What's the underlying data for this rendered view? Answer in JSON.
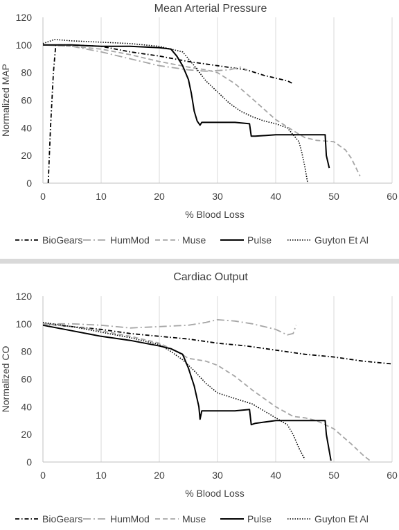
{
  "chart_data": [
    {
      "type": "line",
      "title": "Mean Arterial Pressure",
      "xlabel": "% Blood Loss",
      "ylabel": "Normalized MAP",
      "xlim": [
        0,
        60
      ],
      "ylim": [
        0,
        120
      ],
      "xticks": [
        "0",
        "10",
        "20",
        "30",
        "40",
        "50",
        "60"
      ],
      "yticks": [
        "0",
        "20",
        "40",
        "60",
        "80",
        "100",
        "120"
      ],
      "grid": "vertical",
      "legend": "bottom",
      "series": [
        {
          "name": "BioGears",
          "style": "dashdot",
          "color": "#000000",
          "x": [
            0.9,
            1.3,
            1.8,
            2.2,
            5,
            10,
            15,
            20,
            25,
            30,
            35,
            38,
            40,
            42,
            43
          ],
          "y": [
            0,
            40,
            80,
            100,
            100,
            99,
            95,
            92,
            88,
            85,
            82,
            78,
            76,
            74,
            72
          ]
        },
        {
          "name": "HumMod",
          "style": "longdashdot",
          "color": "#a6a6a6",
          "x": [
            0,
            5,
            10,
            15,
            20,
            25,
            28,
            32,
            34,
            35
          ],
          "y": [
            100,
            99,
            95,
            90,
            85,
            82,
            81,
            82,
            84,
            82
          ]
        },
        {
          "name": "Muse",
          "style": "dashed",
          "color": "#a6a6a6",
          "x": [
            0,
            5,
            10,
            15,
            20,
            25,
            28,
            30,
            33,
            36,
            40,
            43,
            45,
            47,
            50,
            52,
            53,
            54.5
          ],
          "y": [
            100,
            99,
            97,
            93,
            88,
            84,
            82,
            80,
            72,
            61,
            46,
            38,
            33,
            31,
            30,
            24,
            18,
            5
          ]
        },
        {
          "name": "Pulse",
          "style": "solid",
          "color": "#000000",
          "x": [
            0,
            5,
            10,
            15,
            20,
            22,
            23,
            24,
            25,
            25.5,
            26,
            26.5,
            27,
            27.3,
            30,
            33,
            35.5,
            35.8,
            36.5,
            40,
            45,
            48.5,
            48.7,
            49.2
          ],
          "y": [
            100,
            100,
            99,
            99,
            98,
            97,
            92,
            85,
            75,
            65,
            52,
            45,
            42,
            44,
            44,
            44,
            43,
            34,
            34,
            35,
            35,
            35,
            20,
            11
          ]
        },
        {
          "name": "Guyton Et Al",
          "style": "dotted",
          "color": "#000000",
          "x": [
            0,
            2,
            5,
            10,
            15,
            20,
            24,
            26,
            28,
            30,
            32,
            34,
            36,
            38,
            40,
            42,
            43,
            44,
            44.5,
            45,
            45.5
          ],
          "y": [
            101,
            104,
            103,
            102,
            101,
            99,
            95,
            85,
            74,
            66,
            58,
            52,
            48,
            45,
            43,
            40,
            35,
            30,
            22,
            12,
            0
          ]
        }
      ]
    },
    {
      "type": "line",
      "title": "Cardiac Output",
      "xlabel": "% Blood Loss",
      "ylabel": "Normalized CO",
      "xlim": [
        0,
        60
      ],
      "ylim": [
        0,
        120
      ],
      "xticks": [
        "0",
        "10",
        "20",
        "30",
        "40",
        "50",
        "60"
      ],
      "yticks": [
        "0",
        "20",
        "40",
        "60",
        "80",
        "100",
        "120"
      ],
      "grid": "vertical",
      "legend": "bottom",
      "series": [
        {
          "name": "BioGears",
          "style": "dashdot",
          "color": "#000000",
          "x": [
            0,
            5,
            10,
            15,
            20,
            25,
            30,
            35,
            40,
            45,
            50,
            55,
            60
          ],
          "y": [
            100,
            98,
            96,
            93,
            91,
            89,
            86,
            84,
            81,
            78,
            76,
            73,
            71
          ]
        },
        {
          "name": "HumMod",
          "style": "longdashdot",
          "color": "#a6a6a6",
          "x": [
            0,
            5,
            10,
            15,
            20,
            25,
            28,
            30,
            33,
            36,
            38,
            40,
            42,
            43,
            43.5
          ],
          "y": [
            100,
            100,
            99,
            97,
            98,
            99,
            101,
            103,
            102,
            100,
            98,
            96,
            92,
            93,
            99
          ]
        },
        {
          "name": "Muse",
          "style": "dashed",
          "color": "#a6a6a6",
          "x": [
            0,
            5,
            10,
            15,
            20,
            23,
            25,
            28,
            30,
            33,
            36,
            40,
            43,
            45,
            47,
            50,
            53,
            55,
            56.5
          ],
          "y": [
            100,
            98,
            95,
            91,
            86,
            80,
            75,
            73,
            70,
            62,
            52,
            40,
            33,
            32,
            30,
            24,
            13,
            5,
            0
          ]
        },
        {
          "name": "Pulse",
          "style": "solid",
          "color": "#000000",
          "x": [
            0,
            5,
            10,
            15,
            20,
            22,
            24,
            25,
            26,
            26.8,
            27,
            27.3,
            30,
            33,
            35.5,
            35.8,
            36.5,
            40,
            45,
            48.5,
            48.7,
            49.5
          ],
          "y": [
            99,
            95,
            91,
            88,
            84,
            82,
            78,
            68,
            55,
            40,
            31,
            37,
            37,
            37,
            38,
            27,
            28,
            30,
            30,
            30,
            20,
            1
          ]
        },
        {
          "name": "Guyton Et Al",
          "style": "dotted",
          "color": "#000000",
          "x": [
            0,
            5,
            10,
            15,
            20,
            22,
            24,
            26,
            28,
            30,
            33,
            36,
            38,
            40,
            42,
            43,
            44,
            45
          ],
          "y": [
            101,
            98,
            94,
            90,
            85,
            80,
            74,
            66,
            57,
            50,
            46,
            42,
            37,
            32,
            27,
            20,
            10,
            2
          ]
        }
      ]
    }
  ]
}
